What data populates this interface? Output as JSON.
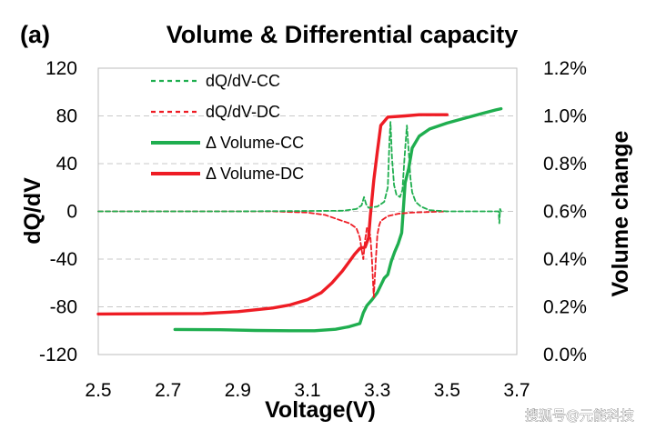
{
  "panel_label": "(a)",
  "watermark": "搜狐号@元能科技",
  "chart_data": {
    "type": "line",
    "title": "Volume & Differential capacity",
    "xlabel": "Voltage(V)",
    "ylabel": "dQ/dV",
    "y2label": "Volume change",
    "xlim": [
      2.5,
      3.7
    ],
    "ylim": [
      -120,
      120
    ],
    "y2lim": [
      0.0,
      1.2
    ],
    "x_ticks": [
      "2.5",
      "2.7",
      "2.9",
      "3.1",
      "3.3",
      "3.5",
      "3.7"
    ],
    "y_ticks": [
      "120",
      "80",
      "40",
      "0",
      "-40",
      "-80",
      "-120"
    ],
    "y2_ticks": [
      "1.2%",
      "1.0%",
      "0.8%",
      "0.6%",
      "0.4%",
      "0.2%",
      "0.0%"
    ],
    "grid": "horizontal-dashed",
    "legend": {
      "position": "top-left"
    },
    "colors": {
      "green": "#1fae4f",
      "red": "#ee1c24"
    },
    "series": [
      {
        "name": "dQ/dV-CC",
        "axis": "left",
        "style": "dashed",
        "color": "#1fae4f",
        "x": [
          2.5,
          2.9,
          3.2,
          3.24,
          3.255,
          3.262,
          3.268,
          3.275,
          3.3,
          3.32,
          3.33,
          3.335,
          3.338,
          3.342,
          3.348,
          3.355,
          3.365,
          3.372,
          3.378,
          3.385,
          3.39,
          3.395,
          3.4,
          3.41,
          3.425,
          3.45,
          3.5,
          3.6,
          3.648,
          3.65,
          3.652,
          3.655
        ],
        "y": [
          0,
          0,
          0.5,
          2,
          5,
          12,
          6,
          3,
          4,
          8,
          20,
          60,
          75,
          45,
          22,
          14,
          12,
          18,
          45,
          72,
          50,
          28,
          16,
          8,
          4,
          1,
          0,
          0,
          0,
          -10,
          2,
          0
        ]
      },
      {
        "name": "dQ/dV-DC",
        "axis": "left",
        "style": "dashed",
        "color": "#ee1c24",
        "x": [
          2.5,
          3.0,
          3.1,
          3.15,
          3.2,
          3.22,
          3.24,
          3.25,
          3.255,
          3.26,
          3.265,
          3.27,
          3.28,
          3.285,
          3.29,
          3.295,
          3.3,
          3.305,
          3.31,
          3.33,
          3.36,
          3.4,
          3.5
        ],
        "y": [
          0,
          0,
          -1,
          -3,
          -8,
          -10,
          -14,
          -22,
          -32,
          -40,
          -24,
          -14,
          -20,
          -42,
          -72,
          -45,
          -20,
          -12,
          -8,
          -4,
          -2,
          -1,
          0
        ]
      },
      {
        "name": "Δ Volume-CC",
        "axis": "right",
        "style": "solid",
        "color": "#1fae4f",
        "unit": "%",
        "x": [
          2.72,
          2.85,
          2.95,
          3.05,
          3.12,
          3.18,
          3.22,
          3.25,
          3.26,
          3.27,
          3.285,
          3.3,
          3.32,
          3.33,
          3.34,
          3.35,
          3.36,
          3.37,
          3.38,
          3.39,
          3.4,
          3.42,
          3.45,
          3.5,
          3.55,
          3.6,
          3.64,
          3.655
        ],
        "y": [
          0.105,
          0.104,
          0.101,
          0.1,
          0.1,
          0.106,
          0.117,
          0.13,
          0.175,
          0.205,
          0.23,
          0.26,
          0.32,
          0.335,
          0.39,
          0.43,
          0.465,
          0.51,
          0.72,
          0.78,
          0.865,
          0.915,
          0.945,
          0.97,
          0.99,
          1.01,
          1.025,
          1.03
        ]
      },
      {
        "name": "Δ Volume-DC",
        "axis": "right",
        "style": "solid",
        "color": "#ee1c24",
        "unit": "%",
        "x": [
          2.5,
          2.8,
          2.9,
          3.0,
          3.05,
          3.1,
          3.14,
          3.17,
          3.2,
          3.22,
          3.235,
          3.25,
          3.265,
          3.275,
          3.28,
          3.29,
          3.3,
          3.31,
          3.33,
          3.38,
          3.42,
          3.45,
          3.5
        ],
        "y": [
          0.17,
          0.172,
          0.18,
          0.195,
          0.208,
          0.23,
          0.26,
          0.3,
          0.35,
          0.39,
          0.42,
          0.445,
          0.45,
          0.49,
          0.58,
          0.73,
          0.85,
          0.96,
          0.995,
          1.0,
          1.005,
          1.005,
          1.005
        ]
      }
    ]
  }
}
